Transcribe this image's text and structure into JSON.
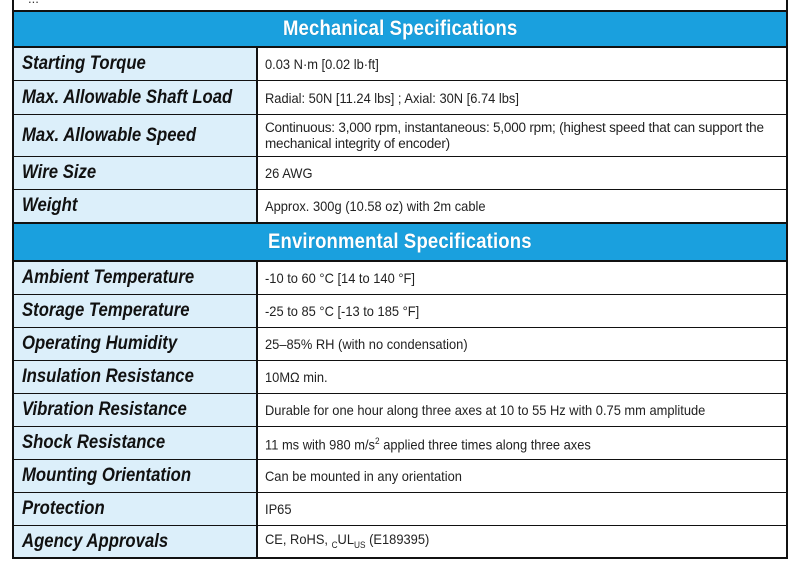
{
  "top_fragment": "...",
  "mechanical": {
    "title": "Mechanical Specifications",
    "rows": [
      {
        "label": "Starting Torque",
        "value": "0.03 N·m [0.02 lb·ft]"
      },
      {
        "label": "Max. Allowable Shaft Load",
        "value": "Radial: 50N [11.24 lbs] ;  Axial: 30N [6.74 lbs]"
      },
      {
        "label": "Max. Allowable Speed",
        "value": "Continuous: 3,000 rpm, instantaneous: 5,000 rpm; (highest speed that can support the mechanical integrity of encoder)"
      },
      {
        "label": "Wire Size",
        "value": "26 AWG"
      },
      {
        "label": "Weight",
        "value": "Approx. 300g (10.58 oz) with 2m cable"
      }
    ]
  },
  "environmental": {
    "title": "Environmental Specifications",
    "rows": [
      {
        "label": "Ambient Temperature",
        "value": "-10 to 60 °C  [14 to 140 °F]"
      },
      {
        "label": "Storage Temperature",
        "value": "-25 to 85 °C  [-13 to 185 °F]"
      },
      {
        "label": "Operating Humidity",
        "value": "25–85% RH (with no condensation)"
      },
      {
        "label": "Insulation Resistance",
        "value": "10MΩ min."
      },
      {
        "label": "Vibration Resistance",
        "value": "Durable for one hour along three axes at 10 to 55 Hz with 0.75 mm amplitude"
      },
      {
        "label": "Shock Resistance",
        "value_pre": "11 ms with 980 m/s",
        "value_sup": "2",
        "value_post": " applied three times along three axes"
      },
      {
        "label": "Mounting Orientation",
        "value": "Can be mounted in any orientation"
      },
      {
        "label": "Protection",
        "value": "IP65"
      },
      {
        "label": "Agency Approvals",
        "value_pre": "CE, RoHS, ",
        "value_sub1": "C",
        "value_mid": "UL",
        "value_sub2": "US",
        "value_post": " (E189395)"
      }
    ]
  }
}
